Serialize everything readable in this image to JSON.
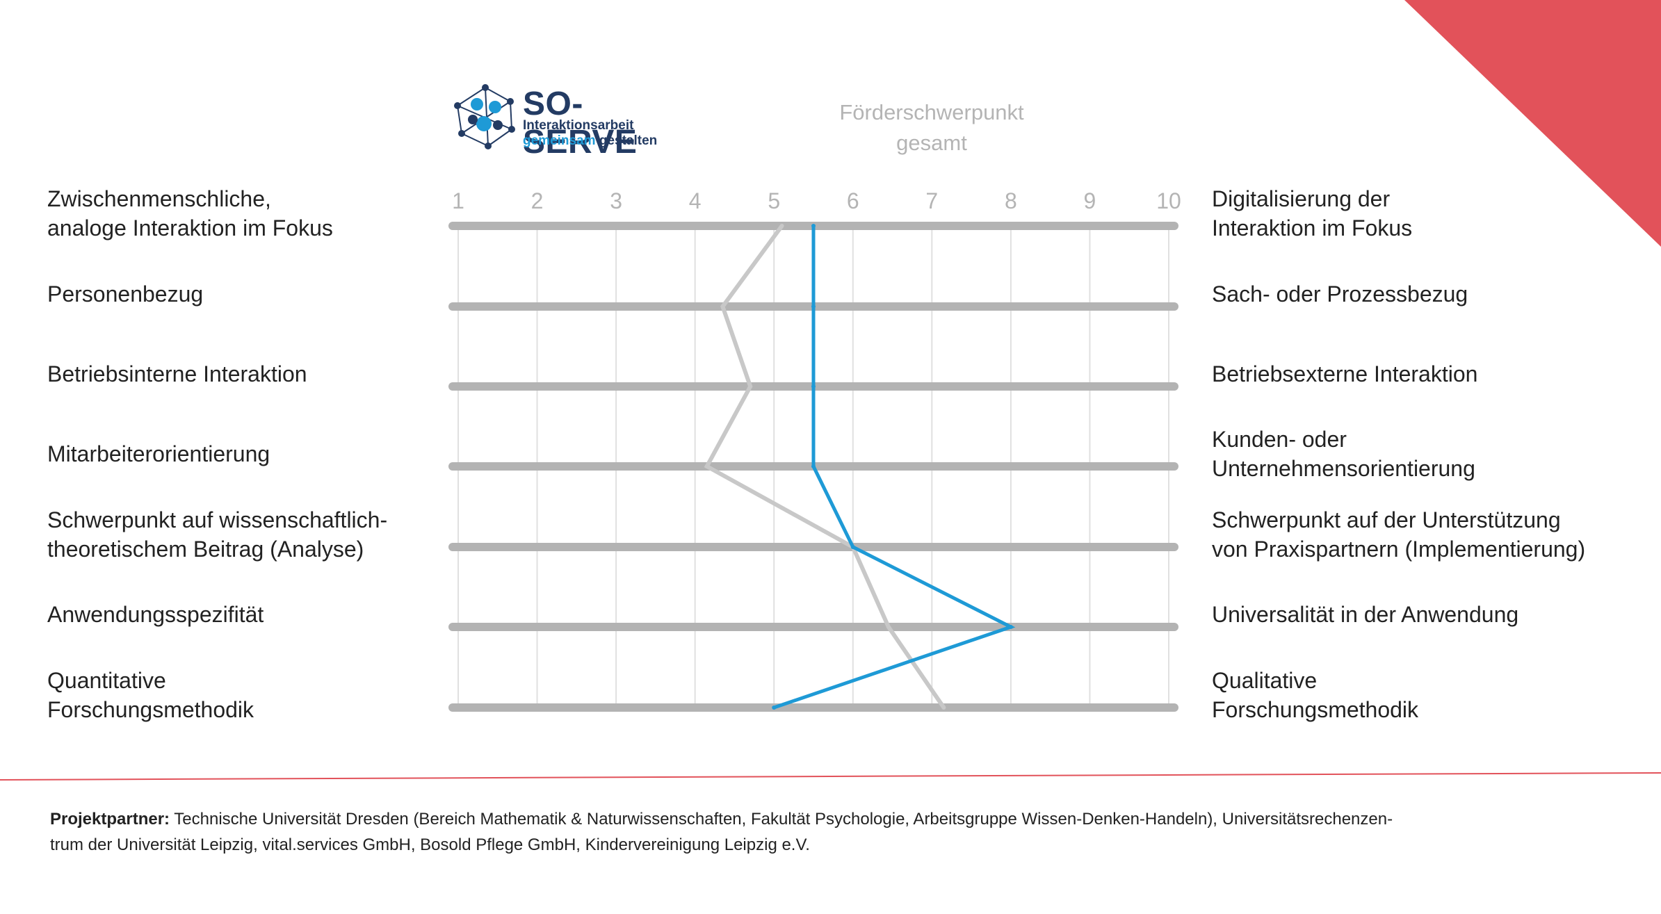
{
  "logo": {
    "title": "SO-SERVE",
    "subtitle_line1": "Interaktionsarbeit",
    "subtitle_line2_highlight": "gemeinsam",
    "subtitle_line2_rest": "gestalten"
  },
  "colors": {
    "accent_red": "#e2525a",
    "series_blue": "#1e9ad6",
    "series_gray": "#c8c8c8",
    "track": "#b3b3b3",
    "grid": "#e0e0e0",
    "tick_text": "#b4b4b4"
  },
  "chart_data": {
    "type": "line",
    "title_line1": "Förderschwerpunkt",
    "title_line2": "gesamt",
    "x_ticks": [
      "1",
      "2",
      "3",
      "4",
      "5",
      "6",
      "7",
      "8",
      "9",
      "10"
    ],
    "xlim": [
      1,
      10
    ],
    "rows": [
      {
        "left": [
          "Zwischenmenschliche,",
          "analoge Interaktion im Fokus"
        ],
        "right": [
          "Digitalisierung der",
          "Interaktion im Fokus"
        ]
      },
      {
        "left": [
          "Personenbezug"
        ],
        "right": [
          "Sach- oder Prozessbezug"
        ]
      },
      {
        "left": [
          "Betriebsinterne Interaktion"
        ],
        "right": [
          "Betriebsexterne Interaktion"
        ]
      },
      {
        "left": [
          "Mitarbeiterorientierung"
        ],
        "right": [
          "Kunden- oder",
          "Unternehmensorientierung"
        ]
      },
      {
        "left": [
          "Schwerpunkt auf wissenschaftlich-",
          "theoretischem Beitrag (Analyse)"
        ],
        "right": [
          "Schwerpunkt auf der Unterstützung",
          "von Praxispartnern (Implementierung)"
        ]
      },
      {
        "left": [
          "Anwendungsspezifität"
        ],
        "right": [
          "Universalität in der Anwendung"
        ]
      },
      {
        "left": [
          "Quantitative",
          "Forschungsmethodik"
        ],
        "right": [
          "Qualitative",
          "Forschungsmethodik"
        ]
      }
    ],
    "series": [
      {
        "color": "#c8c8c8",
        "values": [
          5.1,
          4.35,
          4.7,
          4.15,
          6.0,
          6.45,
          7.15
        ]
      },
      {
        "color": "#1e9ad6",
        "values": [
          5.5,
          5.5,
          5.5,
          5.5,
          6.0,
          8.0,
          5.0
        ]
      }
    ],
    "grid": true
  },
  "footer": {
    "label": "Projektpartner:",
    "line1": " Technische Universität Dresden (Bereich Mathematik & Naturwissenschaften, Fakultät Psychologie, Arbeitsgruppe Wissen-Denken-Handeln), Universitätsrechenzen-",
    "line2": "trum der Universität Leipzig, vital.services GmbH, Bosold Pflege GmbH, Kindervereinigung Leipzig e.V."
  }
}
